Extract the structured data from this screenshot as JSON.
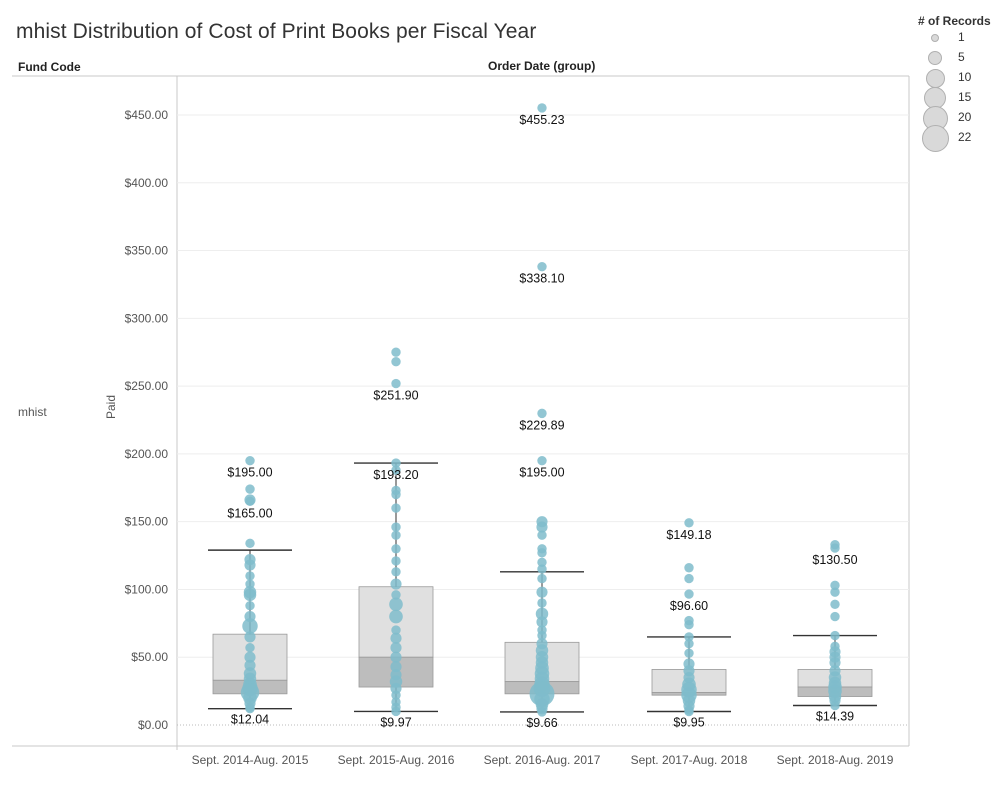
{
  "title": "mhist Distribution of Cost of Print Books per Fiscal Year",
  "headers": {
    "fund_code": "Fund Code",
    "order_date": "Order Date (group)"
  },
  "row_label": "mhist",
  "y_axis_label": "Paid",
  "legend": {
    "title": "# of Records",
    "items": [
      "1",
      "5",
      "10",
      "15",
      "20",
      "22"
    ]
  },
  "colors": {
    "point": "#7fbccb",
    "point_dark": "#5aa5b5",
    "box_upper": "#e0e0e0",
    "box_lower": "#bdbdbd",
    "whisker": "#333333",
    "grid": "#eeeeee"
  },
  "chart_data": {
    "type": "box-plot",
    "ylim": [
      0,
      470
    ],
    "y_ticks": [
      "$0.00",
      "$50.00",
      "$100.00",
      "$150.00",
      "$200.00",
      "$250.00",
      "$300.00",
      "$350.00",
      "$400.00",
      "$450.00"
    ],
    "y_tick_values": [
      0,
      50,
      100,
      150,
      200,
      250,
      300,
      350,
      400,
      450
    ],
    "categories": [
      "Sept. 2014-Aug. 2015",
      "Sept. 2015-Aug. 2016",
      "Sept. 2016-Aug. 2017",
      "Sept. 2017-Aug. 2018",
      "Sept. 2018-Aug. 2019"
    ],
    "boxes": [
      {
        "whisker_low": 12.04,
        "q1": 23,
        "median": 33,
        "q3": 67,
        "whisker_high": 129,
        "labels": [
          "$195.00",
          "$165.00",
          "$12.04"
        ],
        "label_values": [
          195.0,
          165.0,
          12.04
        ],
        "label_positions": [
          "above",
          "above",
          "below"
        ]
      },
      {
        "whisker_low": 9.97,
        "q1": 28,
        "median": 50,
        "q3": 102,
        "whisker_high": 193.2,
        "labels": [
          "$251.90",
          "$193.20",
          "$9.97"
        ],
        "label_values": [
          251.9,
          193.2,
          9.97
        ],
        "label_positions": [
          "above",
          "above",
          "below"
        ]
      },
      {
        "whisker_low": 9.66,
        "q1": 23,
        "median": 32,
        "q3": 61,
        "whisker_high": 113,
        "labels": [
          "$455.23",
          "$338.10",
          "$229.89",
          "$195.00",
          "$9.66"
        ],
        "label_values": [
          455.23,
          338.1,
          229.89,
          195.0,
          9.66
        ],
        "label_positions": [
          "above",
          "above",
          "above",
          "above",
          "below"
        ]
      },
      {
        "whisker_low": 9.95,
        "q1": 22,
        "median": 24,
        "q3": 41,
        "whisker_high": 65,
        "labels": [
          "$149.18",
          "$96.60",
          "$9.95"
        ],
        "label_values": [
          149.18,
          96.6,
          9.95
        ],
        "label_positions": [
          "above",
          "above",
          "below"
        ]
      },
      {
        "whisker_low": 14.39,
        "q1": 21,
        "median": 28,
        "q3": 41,
        "whisker_high": 66,
        "labels": [
          "$130.50",
          "$14.39"
        ],
        "label_values": [
          130.5,
          14.39
        ],
        "label_positions": [
          "above",
          "below"
        ]
      }
    ],
    "points": [
      [
        [
          195,
          1
        ],
        [
          174,
          1
        ],
        [
          166,
          2
        ],
        [
          165,
          1
        ],
        [
          134,
          1
        ],
        [
          122,
          2
        ],
        [
          118,
          2
        ],
        [
          110,
          1
        ],
        [
          104,
          1
        ],
        [
          98,
          3
        ],
        [
          96,
          3
        ],
        [
          88,
          1
        ],
        [
          80,
          2
        ],
        [
          73,
          6
        ],
        [
          65,
          2
        ],
        [
          57,
          1
        ],
        [
          50,
          2
        ],
        [
          44,
          2
        ],
        [
          38,
          3
        ],
        [
          34,
          3
        ],
        [
          30,
          4
        ],
        [
          27,
          6
        ],
        [
          24,
          10
        ],
        [
          20,
          4
        ],
        [
          16,
          2
        ],
        [
          13,
          1
        ],
        [
          12.04,
          1
        ]
      ],
      [
        [
          275,
          1
        ],
        [
          268,
          1
        ],
        [
          251.9,
          1
        ],
        [
          193.2,
          1
        ],
        [
          188,
          1
        ],
        [
          173,
          1
        ],
        [
          170,
          1
        ],
        [
          160,
          1
        ],
        [
          146,
          1
        ],
        [
          140,
          1
        ],
        [
          130,
          1
        ],
        [
          121,
          1
        ],
        [
          113,
          1
        ],
        [
          104,
          2
        ],
        [
          96,
          1
        ],
        [
          89,
          4
        ],
        [
          80,
          4
        ],
        [
          70,
          1
        ],
        [
          64,
          2
        ],
        [
          57,
          2
        ],
        [
          50,
          2
        ],
        [
          43,
          2
        ],
        [
          37,
          2
        ],
        [
          32,
          3
        ],
        [
          27,
          2
        ],
        [
          22,
          1
        ],
        [
          17,
          1
        ],
        [
          13,
          1
        ],
        [
          9.97,
          1
        ]
      ],
      [
        [
          455.23,
          1
        ],
        [
          338.1,
          1
        ],
        [
          229.89,
          1
        ],
        [
          195,
          1
        ],
        [
          150,
          2
        ],
        [
          146,
          2
        ],
        [
          140,
          1
        ],
        [
          130,
          1
        ],
        [
          127,
          1
        ],
        [
          120,
          1
        ],
        [
          115,
          1
        ],
        [
          108,
          1
        ],
        [
          98,
          2
        ],
        [
          90,
          1
        ],
        [
          82,
          3
        ],
        [
          76,
          2
        ],
        [
          70,
          1
        ],
        [
          66,
          1
        ],
        [
          60,
          2
        ],
        [
          55,
          3
        ],
        [
          50,
          3
        ],
        [
          46,
          3
        ],
        [
          42,
          4
        ],
        [
          38,
          5
        ],
        [
          34,
          5
        ],
        [
          30,
          6
        ],
        [
          27,
          8
        ],
        [
          23,
          22
        ],
        [
          19,
          6
        ],
        [
          15,
          3
        ],
        [
          12,
          2
        ],
        [
          9.66,
          1
        ]
      ],
      [
        [
          149.18,
          1
        ],
        [
          116,
          1
        ],
        [
          108,
          1
        ],
        [
          96.6,
          1
        ],
        [
          77,
          1
        ],
        [
          74,
          1
        ],
        [
          65,
          1
        ],
        [
          60,
          1
        ],
        [
          53,
          1
        ],
        [
          45,
          2
        ],
        [
          40,
          2
        ],
        [
          35,
          2
        ],
        [
          30,
          4
        ],
        [
          26,
          6
        ],
        [
          22,
          6
        ],
        [
          18,
          3
        ],
        [
          14,
          2
        ],
        [
          11,
          1
        ],
        [
          9.95,
          1
        ]
      ],
      [
        [
          133,
          1
        ],
        [
          130.5,
          1
        ],
        [
          103,
          1
        ],
        [
          98,
          1
        ],
        [
          89,
          1
        ],
        [
          80,
          1
        ],
        [
          66,
          1
        ],
        [
          58,
          1
        ],
        [
          54,
          2
        ],
        [
          50,
          2
        ],
        [
          46,
          2
        ],
        [
          40,
          2
        ],
        [
          35,
          3
        ],
        [
          31,
          3
        ],
        [
          28,
          4
        ],
        [
          25,
          4
        ],
        [
          21,
          3
        ],
        [
          18,
          2
        ],
        [
          14.39,
          1
        ]
      ]
    ]
  }
}
